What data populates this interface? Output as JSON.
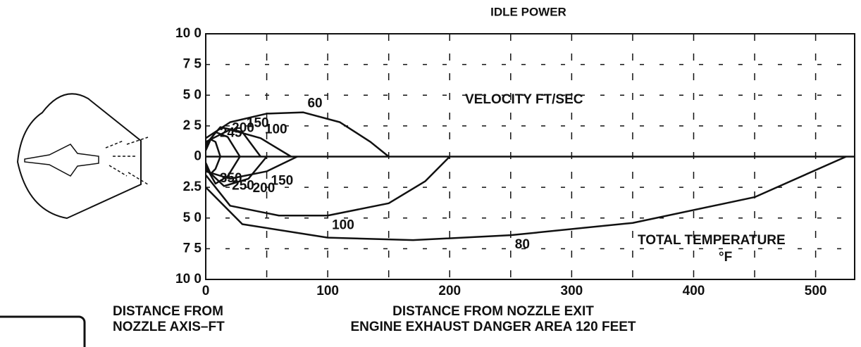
{
  "chart_data": {
    "type": "line",
    "title": "IDLE POWER",
    "annotations": [
      "VELOCITY FT/SEC",
      "TOTAL TEMPERATURE",
      "°F"
    ],
    "ylabel": [
      "DISTANCE FROM",
      "NOZZLE AXIS–FT"
    ],
    "xlabel": [
      "DISTANCE FROM NOZZLE EXIT",
      "ENGINE EXHAUST DANGER AREA 120 FEET"
    ],
    "xlim": [
      0,
      532
    ],
    "ylim": [
      -100,
      100
    ],
    "xticks": [
      0,
      100,
      200,
      300,
      400,
      500
    ],
    "xgrid": [
      50,
      100,
      150,
      200,
      250,
      300,
      350,
      400,
      450,
      500
    ],
    "yticks": [
      {
        "value": 100,
        "label": "10 0"
      },
      {
        "value": 75,
        "label": "7 5"
      },
      {
        "value": 50,
        "label": "5 0"
      },
      {
        "value": 25,
        "label": "2 5"
      },
      0,
      {
        "value": -25,
        "label": "2.5"
      },
      {
        "value": -50,
        "label": "5 0"
      },
      {
        "value": -75,
        "label": "7 5"
      },
      {
        "value": -100,
        "label": "10 0"
      }
    ],
    "grid": true,
    "color": "#111111",
    "series": [
      {
        "name": "245",
        "x": [
          0,
          4,
          8,
          12
        ],
        "values": [
          5,
          14,
          12,
          0
        ]
      },
      {
        "name": "200",
        "x": [
          0,
          8,
          18,
          28
        ],
        "values": [
          8,
          20,
          16,
          0
        ]
      },
      {
        "name": "150",
        "x": [
          0,
          12,
          30,
          45
        ],
        "values": [
          10,
          24,
          20,
          0
        ]
      },
      {
        "name": "100",
        "x": [
          0,
          20,
          45,
          70
        ],
        "values": [
          12,
          22,
          15,
          0
        ]
      },
      {
        "name": "60",
        "x": [
          0,
          20,
          50,
          80,
          110,
          135,
          150
        ],
        "values": [
          15,
          28,
          35,
          36,
          28,
          12,
          0
        ]
      },
      {
        "name": "350",
        "x": [
          0,
          4,
          8,
          12
        ],
        "values": [
          -5,
          -14,
          -10,
          0
        ]
      },
      {
        "name": "250",
        "x": [
          0,
          8,
          18,
          28
        ],
        "values": [
          -8,
          -22,
          -16,
          0
        ]
      },
      {
        "name": "200",
        "x": [
          0,
          15,
          35,
          50
        ],
        "values": [
          -10,
          -24,
          -18,
          0
        ]
      },
      {
        "name": "150",
        "x": [
          0,
          20,
          50,
          75
        ],
        "values": [
          -12,
          -18,
          -12,
          0
        ]
      },
      {
        "name": "100",
        "x": [
          0,
          20,
          60,
          100,
          150,
          180,
          200
        ],
        "values": [
          -15,
          -40,
          -48,
          -48,
          -38,
          -20,
          0
        ]
      },
      {
        "name": "80",
        "x": [
          0,
          30,
          100,
          170,
          250,
          350,
          450,
          525
        ],
        "values": [
          -25,
          -55,
          -66,
          -68,
          -64,
          -54,
          -33,
          0
        ]
      }
    ]
  }
}
